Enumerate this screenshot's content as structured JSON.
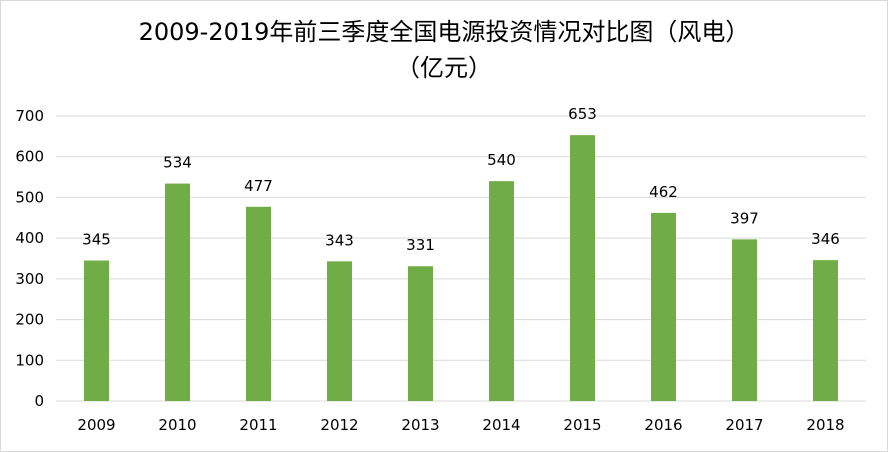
{
  "chart_data": {
    "type": "bar",
    "title": "2009-2019年前三季度全国电源投资情况对比图（风电）",
    "subtitle": "（亿元）",
    "xlabel": "",
    "ylabel": "",
    "categories": [
      "2009",
      "2010",
      "2011",
      "2012",
      "2013",
      "2014",
      "2015",
      "2016",
      "2017",
      "2018"
    ],
    "values": [
      345,
      534,
      477,
      343,
      331,
      540,
      653,
      462,
      397,
      346
    ],
    "ylim": [
      0,
      700
    ],
    "yticks": [
      0,
      100,
      200,
      300,
      400,
      500,
      600,
      700
    ],
    "grid": true,
    "legend": "none",
    "bar_color": "#70ad47",
    "grid_color": "#d9d9d9"
  }
}
